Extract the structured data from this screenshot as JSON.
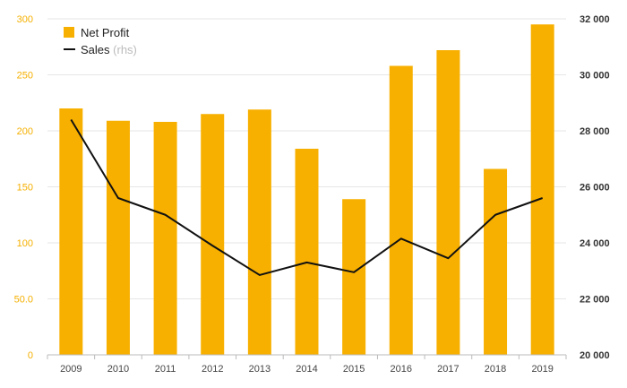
{
  "colors": {
    "bar": "#f8b000",
    "line": "#111111",
    "grid": "#e6e6e6",
    "left_axis_text": "#f5b000",
    "right_axis_text": "#333333"
  },
  "chart_data": {
    "type": "bar",
    "categories": [
      "2009",
      "2010",
      "2011",
      "2012",
      "2013",
      "2014",
      "2015",
      "2016",
      "2017",
      "2018",
      "2019"
    ],
    "series": [
      {
        "name": "Net Profit",
        "type": "bar",
        "axis": "left",
        "values": [
          220,
          209,
          208,
          215,
          219,
          184,
          139,
          258,
          272,
          166,
          295
        ]
      },
      {
        "name": "Sales",
        "type": "line",
        "axis": "right",
        "values": [
          28400,
          25600,
          25000,
          23900,
          22850,
          23300,
          22950,
          24150,
          23450,
          25000,
          25600
        ]
      }
    ],
    "legend": [
      {
        "label": "Net Profit",
        "suffix": ""
      },
      {
        "label": "Sales",
        "suffix": "(rhs)"
      }
    ],
    "y_left": {
      "ylim": [
        0,
        300
      ],
      "ticks": [
        "0",
        "50.0",
        "100",
        "150",
        "200",
        "250",
        "300"
      ]
    },
    "y_right": {
      "ylim": [
        20000,
        32000
      ],
      "ticks": [
        "20 000",
        "22 000",
        "24 000",
        "26 000",
        "28 000",
        "30 000",
        "32 000"
      ]
    },
    "grid": true,
    "legend_position": "top-left"
  }
}
